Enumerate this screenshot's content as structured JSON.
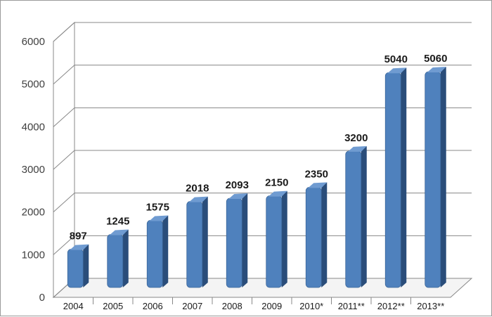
{
  "chart_data": {
    "type": "bar",
    "title": "",
    "xlabel": "",
    "ylabel": "",
    "categories": [
      "2004",
      "2005",
      "2006",
      "2007",
      "2008",
      "2009",
      "2010*",
      "2011**",
      "2012**",
      "2013**"
    ],
    "values": [
      897,
      1245,
      1575,
      2018,
      2093,
      2150,
      2350,
      3200,
      5040,
      5060
    ],
    "data_labels": [
      "897",
      "1245",
      "1575",
      "2018",
      "2093",
      "2150",
      "2350",
      "3200",
      "5040",
      "5060"
    ],
    "y_ticks": [
      "0",
      "1000",
      "2000",
      "3000",
      "4000",
      "5000",
      "6000"
    ],
    "ylim": [
      0,
      6000
    ],
    "grid": true,
    "legend": "none",
    "style": "3d-cylinder",
    "colors": {
      "bar_front": "#4f81bd",
      "bar_dark": "#2a4d7a",
      "bar_top": "#6f9bd1",
      "gridline": "#888888",
      "axis_text": "#404040"
    }
  }
}
